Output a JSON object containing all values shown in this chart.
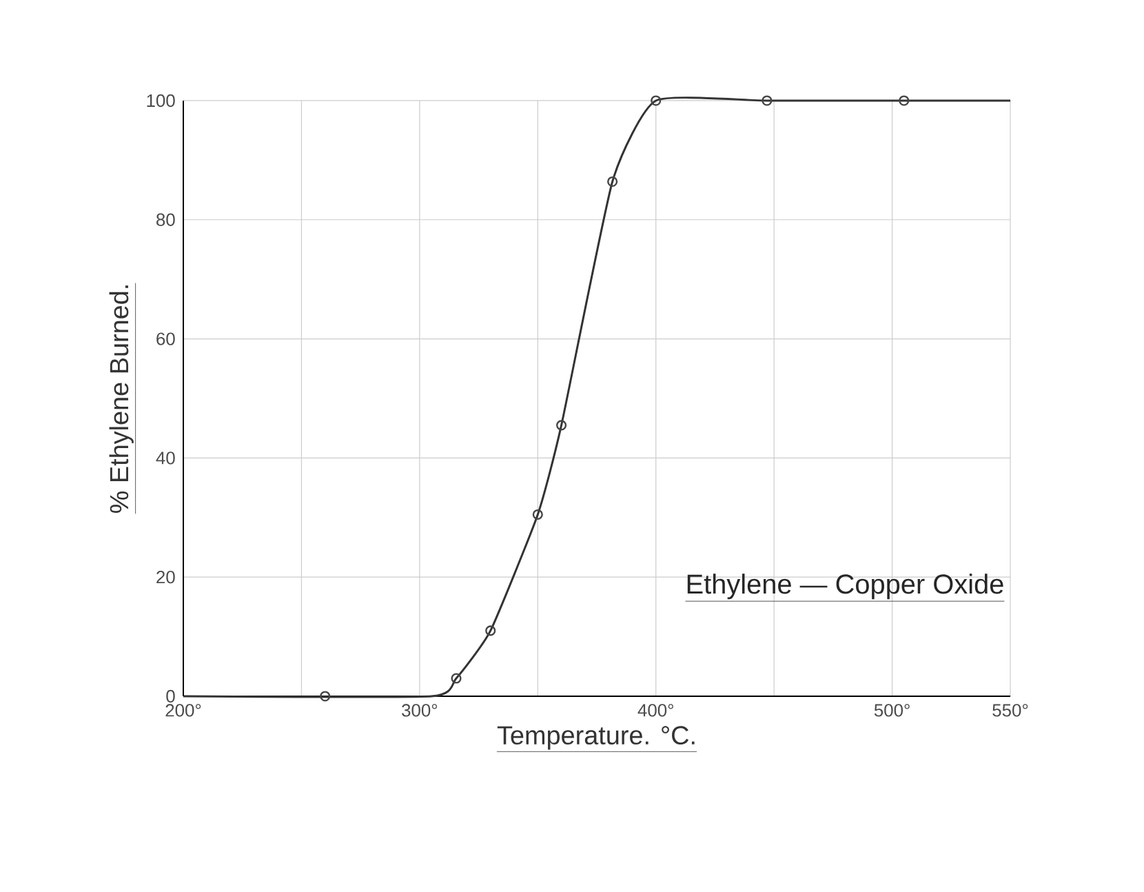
{
  "chart_data": {
    "type": "scatter",
    "xlabel": "Temperature. °C.",
    "ylabel": "% Ethylene Burned.",
    "annotations": [
      "Ethylene — Copper Oxide"
    ],
    "series": [
      {
        "type": "line",
        "color": "#333333",
        "marker": "none",
        "x": [
          200,
          305,
          315.5,
          330,
          350,
          360,
          381.6,
          400,
          447,
          505,
          550
        ],
        "values": [
          0,
          0,
          3,
          11,
          30.5,
          45.5,
          86.4,
          100,
          100,
          100,
          100
        ]
      },
      {
        "color": "#444444",
        "marker": "circle",
        "x": [
          260,
          315.5,
          330,
          350,
          360,
          381.6,
          400,
          447,
          505
        ],
        "values": [
          0,
          3,
          11,
          30.5,
          45.5,
          86.4,
          100,
          100,
          100
        ]
      }
    ],
    "xlim": [
      200,
      550
    ],
    "ylim": [
      0,
      100
    ],
    "xticks": [
      {
        "value": 200,
        "label": "200°"
      },
      {
        "value": 250,
        "label": null
      },
      {
        "value": 300,
        "label": "300°"
      },
      {
        "value": 350,
        "label": null
      },
      {
        "value": 400,
        "label": "400°"
      },
      {
        "value": 450,
        "label": null
      },
      {
        "value": 500,
        "label": "500°"
      },
      {
        "value": 550,
        "label": "550°"
      }
    ],
    "yticks": [
      0,
      20,
      40,
      60,
      80,
      100
    ],
    "grid": true
  }
}
